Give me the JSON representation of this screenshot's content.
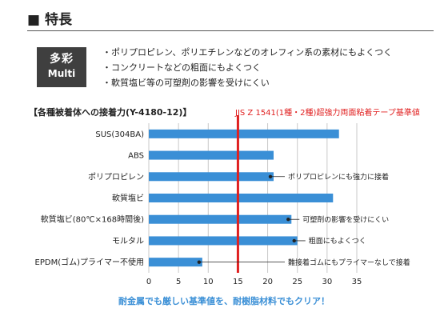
{
  "header": {
    "title": "■ 特長"
  },
  "badge": {
    "label_jp": "多彩",
    "label_en": "Multi"
  },
  "features": [
    "ポリプロピレン、ポリエチレンなどのオレフィン系の素材にもよくつく",
    "コンクリートなどの粗面にもよくつく",
    "軟質塩ビ等の可塑剤の影響を受けにくい"
  ],
  "colors": {
    "bar": "#3a8fd6",
    "reference": "#e02020",
    "tagline": "#3a8fd6"
  },
  "chart_data": {
    "type": "bar",
    "orientation": "horizontal",
    "title": "【各種被着体への接着力(Y-4180-12)】",
    "categories": [
      "SUS(304BA)",
      "ABS",
      "ポリプロピレン",
      "軟質塩ビ",
      "軟質塩ビ(80℃×168時間後)",
      "モルタル",
      "EPDM(ゴム)プライマー不使用"
    ],
    "values": [
      32,
      21,
      21,
      31,
      24,
      25,
      9
    ],
    "xlim": [
      0,
      35
    ],
    "xticks": [
      0,
      5,
      10,
      15,
      20,
      25,
      30,
      35
    ],
    "grid": true,
    "reference": {
      "value": 15,
      "label": "JIS Z 1541(1種・2種)超強力両面粘着テープ基準値"
    },
    "annotations": [
      {
        "category_index": 2,
        "text": "ポリプロピレンにも強力に接着"
      },
      {
        "category_index": 4,
        "text": "可塑剤の影響を受けにくい"
      },
      {
        "category_index": 5,
        "text": "粗面にもよくつく"
      },
      {
        "category_index": 6,
        "text": "難接着ゴムにもプライマーなしで接着"
      }
    ]
  },
  "tagline": "耐金属でも厳しい基準値を、耐樹脂材料でもクリア！"
}
